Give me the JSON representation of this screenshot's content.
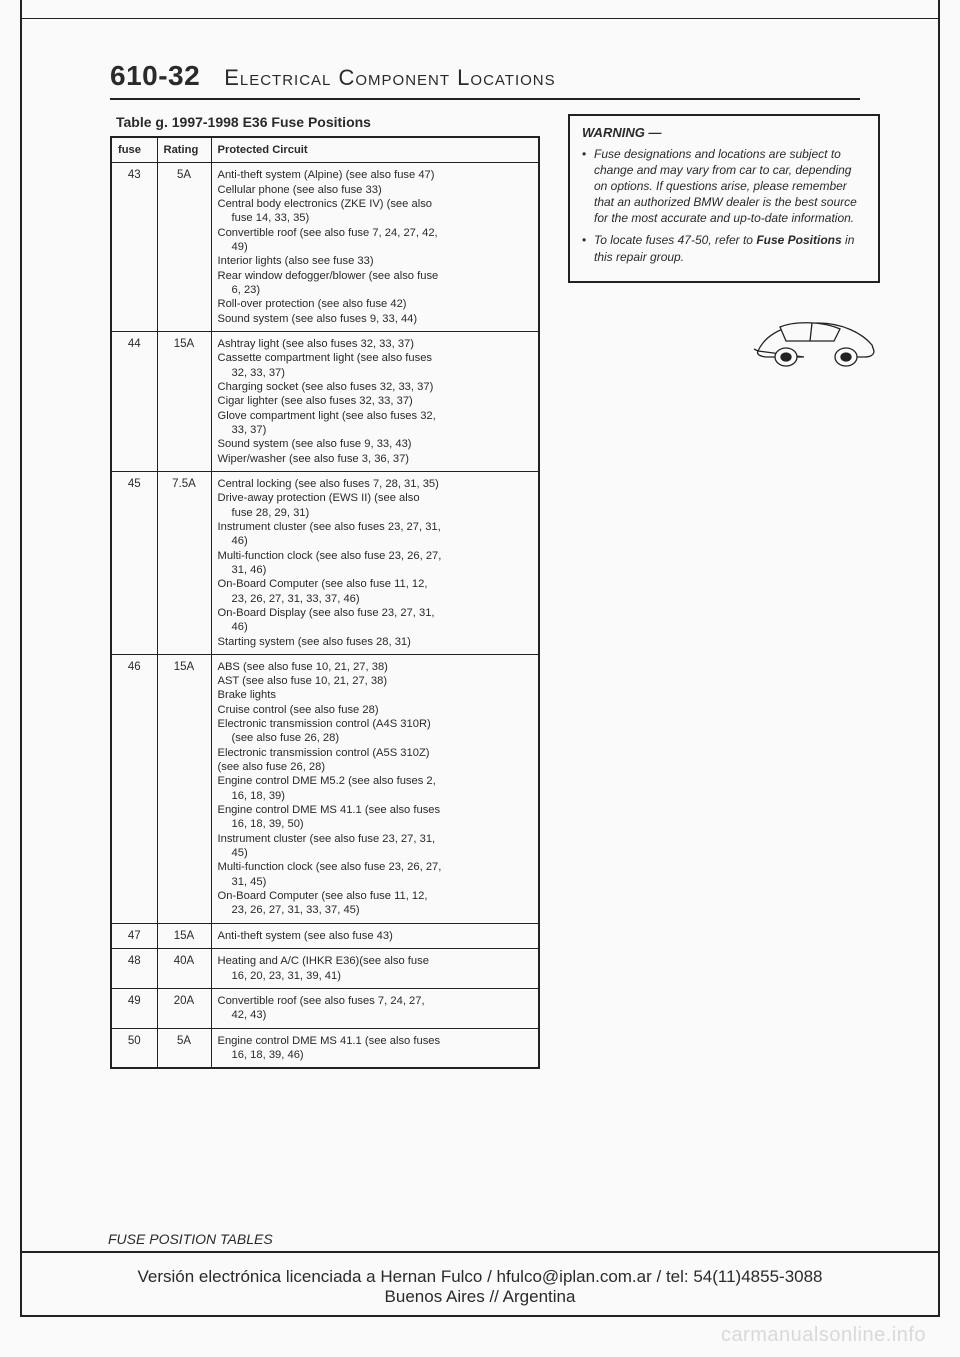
{
  "page_number": "610-32",
  "page_title": "Electrical Component Locations",
  "table_caption": "Table g.  1997-1998 E36 Fuse Positions",
  "columns": [
    "fuse",
    "Rating",
    "Protected Circuit"
  ],
  "rows": [
    {
      "fuse": "43",
      "rating": "5A",
      "circuits": [
        {
          "t": "Anti-theft system (Alpine) (see also fuse 47)"
        },
        {
          "t": "Cellular phone (see also fuse 33)"
        },
        {
          "t": "Central body electronics (ZKE IV) (see also"
        },
        {
          "t": "fuse 14, 33, 35)",
          "indent": true
        },
        {
          "t": "Convertible roof (see also fuse 7, 24, 27, 42,"
        },
        {
          "t": "49)",
          "indent": true
        },
        {
          "t": "Interior lights (also see fuse 33)"
        },
        {
          "t": "Rear window defogger/blower (see also fuse"
        },
        {
          "t": "6, 23)",
          "indent": true
        },
        {
          "t": "Roll-over protection (see also fuse 42)"
        },
        {
          "t": "Sound system (see also fuses 9, 33, 44)"
        }
      ]
    },
    {
      "fuse": "44",
      "rating": "15A",
      "circuits": [
        {
          "t": "Ashtray light (see also fuses 32, 33, 37)"
        },
        {
          "t": "Cassette compartment light (see also fuses"
        },
        {
          "t": "32, 33, 37)",
          "indent": true
        },
        {
          "t": "Charging socket (see also fuses 32, 33, 37)"
        },
        {
          "t": "Cigar lighter (see also fuses 32, 33, 37)"
        },
        {
          "t": "Glove compartment light (see also fuses 32,"
        },
        {
          "t": "33, 37)",
          "indent": true
        },
        {
          "t": "Sound system (see also fuse 9, 33, 43)"
        },
        {
          "t": "Wiper/washer (see also fuse 3, 36, 37)"
        }
      ]
    },
    {
      "fuse": "45",
      "rating": "7.5A",
      "circuits": [
        {
          "t": "Central locking (see also fuses 7, 28, 31, 35)"
        },
        {
          "t": "Drive-away protection (EWS II) (see also"
        },
        {
          "t": "fuse 28, 29, 31)",
          "indent": true
        },
        {
          "t": "Instrument cluster (see also fuses 23, 27, 31,"
        },
        {
          "t": "46)",
          "indent": true
        },
        {
          "t": "Multi-function clock (see also fuse 23, 26, 27,"
        },
        {
          "t": "31, 46)",
          "indent": true
        },
        {
          "t": "On-Board Computer (see also fuse 11, 12,"
        },
        {
          "t": "23, 26, 27, 31, 33, 37, 46)",
          "indent": true
        },
        {
          "t": "On-Board Display (see also fuse 23, 27, 31,"
        },
        {
          "t": "46)",
          "indent": true
        },
        {
          "t": "Starting system (see also fuses 28, 31)"
        }
      ]
    },
    {
      "fuse": "46",
      "rating": "15A",
      "circuits": [
        {
          "t": "ABS (see also fuse 10, 21, 27, 38)"
        },
        {
          "t": "AST (see also fuse 10, 21, 27, 38)"
        },
        {
          "t": "Brake lights"
        },
        {
          "t": "Cruise control (see also fuse 28)"
        },
        {
          "t": "Electronic transmission control (A4S 310R)"
        },
        {
          "t": "(see also fuse 26, 28)",
          "indent": true
        },
        {
          "t": "Electronic transmission control (A5S 310Z)"
        },
        {
          "t": "(see also fuse 26, 28)"
        },
        {
          "t": "Engine control DME M5.2 (see also fuses 2,"
        },
        {
          "t": "16, 18, 39)",
          "indent": true
        },
        {
          "t": "Engine control DME MS 41.1 (see also fuses"
        },
        {
          "t": "16, 18, 39, 50)",
          "indent": true
        },
        {
          "t": "Instrument cluster (see also fuse 23, 27, 31,"
        },
        {
          "t": "45)",
          "indent": true
        },
        {
          "t": "Multi-function clock (see also fuse 23, 26, 27,"
        },
        {
          "t": "31, 45)",
          "indent": true
        },
        {
          "t": "On-Board Computer (see also fuse 11, 12,"
        },
        {
          "t": "23, 26, 27, 31, 33, 37, 45)",
          "indent": true
        }
      ]
    },
    {
      "fuse": "47",
      "rating": "15A",
      "circuits": [
        {
          "t": "Anti-theft system (see also fuse 43)"
        }
      ]
    },
    {
      "fuse": "48",
      "rating": "40A",
      "circuits": [
        {
          "t": "Heating and A/C (IHKR E36)(see also fuse"
        },
        {
          "t": "16, 20, 23, 31, 39, 41)",
          "indent": true
        }
      ]
    },
    {
      "fuse": "49",
      "rating": "20A",
      "circuits": [
        {
          "t": "Convertible roof (see also fuses 7, 24, 27,"
        },
        {
          "t": "42, 43)",
          "indent": true
        }
      ]
    },
    {
      "fuse": "50",
      "rating": "5A",
      "circuits": [
        {
          "t": "Engine control DME MS 41.1 (see also fuses"
        },
        {
          "t": "16, 18, 39, 46)",
          "indent": true
        }
      ]
    }
  ],
  "warning": {
    "title": "WARNING —",
    "items": [
      "Fuse designations and locations are subject to change and may vary from car to car, depending on options. If questions arise, please remember that an authorized BMW dealer is the best source for the most accurate and up-to-date information.",
      "To locate fuses 47-50, refer to <b>Fuse Positions</b> in this repair group."
    ]
  },
  "footer_label": "FUSE POSITION TABLES",
  "license_line1": "Versión electrónica licenciada a Hernan Fulco / hfulco@iplan.com.ar / tel: 54(11)4855-3088",
  "license_line2": "Buenos Aires // Argentina",
  "watermark": "carmanualsonline.info",
  "colors": {
    "page_bg": "#fafafa",
    "ink": "#222222",
    "wm": "#d9d9d9"
  }
}
